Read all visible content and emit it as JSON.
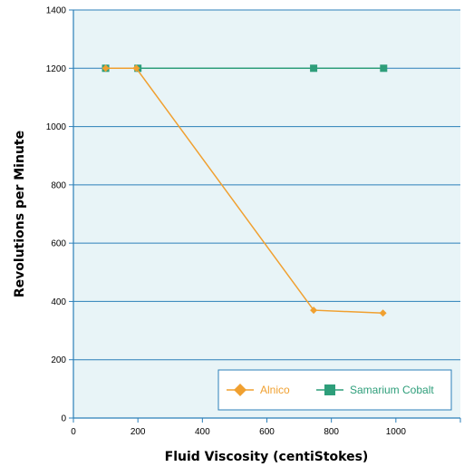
{
  "chart_data": {
    "type": "line",
    "title": "",
    "xlabel": "Fluid Viscosity (centiStokes)",
    "ylabel": "Revolutions per Minute",
    "xlim": [
      0,
      1200
    ],
    "ylim": [
      0,
      1400
    ],
    "x_ticks": [
      0,
      200,
      400,
      600,
      800,
      1000
    ],
    "y_ticks": [
      0,
      200,
      400,
      600,
      800,
      1000,
      1200,
      1400
    ],
    "grid": "horizontal",
    "legend_position": "bottom-right",
    "plot_background": "#e8f4f7",
    "series": [
      {
        "name": "Alnico",
        "color": "#f0a030",
        "marker": "diamond",
        "x": [
          100,
          195,
          745,
          960
        ],
        "y": [
          1200,
          1200,
          370,
          360
        ]
      },
      {
        "name": "Samarium Cobalt",
        "color": "#2e9e7a",
        "marker": "square",
        "x": [
          100,
          200,
          745,
          962
        ],
        "y": [
          1200,
          1200,
          1200,
          1200
        ]
      }
    ]
  }
}
